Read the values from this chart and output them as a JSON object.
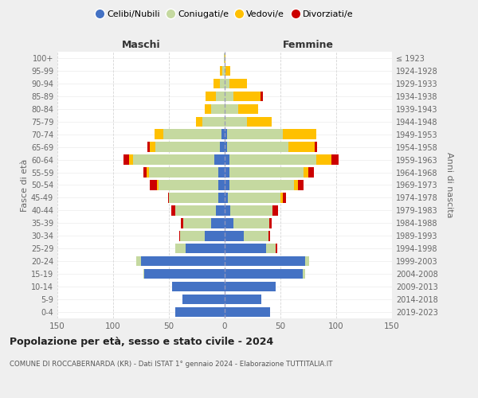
{
  "age_groups": [
    "0-4",
    "5-9",
    "10-14",
    "15-19",
    "20-24",
    "25-29",
    "30-34",
    "35-39",
    "40-44",
    "45-49",
    "50-54",
    "55-59",
    "60-64",
    "65-69",
    "70-74",
    "75-79",
    "80-84",
    "85-89",
    "90-94",
    "95-99",
    "100+"
  ],
  "birth_years": [
    "2019-2023",
    "2014-2018",
    "2009-2013",
    "2004-2008",
    "1999-2003",
    "1994-1998",
    "1989-1993",
    "1984-1988",
    "1979-1983",
    "1974-1978",
    "1969-1973",
    "1964-1968",
    "1959-1963",
    "1954-1958",
    "1949-1953",
    "1944-1948",
    "1939-1943",
    "1934-1938",
    "1929-1933",
    "1924-1928",
    "≤ 1923"
  ],
  "males": {
    "celibe": [
      44,
      38,
      47,
      72,
      75,
      35,
      18,
      12,
      8,
      6,
      6,
      6,
      9,
      4,
      3,
      0,
      0,
      0,
      0,
      0,
      0
    ],
    "coniugato": [
      0,
      0,
      0,
      1,
      4,
      9,
      22,
      25,
      36,
      44,
      53,
      62,
      73,
      58,
      52,
      20,
      12,
      8,
      4,
      2,
      1
    ],
    "vedovo": [
      0,
      0,
      0,
      0,
      0,
      0,
      0,
      0,
      0,
      0,
      2,
      2,
      4,
      5,
      8,
      6,
      6,
      9,
      6,
      2,
      0
    ],
    "divorziato": [
      0,
      0,
      0,
      0,
      0,
      0,
      1,
      2,
      4,
      1,
      6,
      3,
      5,
      2,
      0,
      0,
      0,
      0,
      0,
      0,
      0
    ]
  },
  "females": {
    "nubile": [
      41,
      33,
      46,
      70,
      72,
      37,
      17,
      8,
      5,
      3,
      4,
      4,
      4,
      2,
      2,
      0,
      0,
      0,
      0,
      0,
      0
    ],
    "coniugata": [
      0,
      0,
      0,
      2,
      4,
      9,
      22,
      32,
      38,
      47,
      58,
      67,
      78,
      55,
      50,
      20,
      12,
      8,
      4,
      1,
      0
    ],
    "vedova": [
      0,
      0,
      0,
      0,
      0,
      0,
      0,
      0,
      0,
      2,
      4,
      4,
      14,
      24,
      30,
      22,
      18,
      24,
      16,
      4,
      1
    ],
    "divorziata": [
      0,
      0,
      0,
      0,
      0,
      1,
      2,
      2,
      5,
      3,
      5,
      5,
      6,
      2,
      0,
      0,
      0,
      2,
      0,
      0,
      0
    ]
  },
  "colors": {
    "celibe": "#4472c4",
    "coniugato": "#c5d9a0",
    "vedovo": "#ffc000",
    "divorziato": "#cc0000"
  },
  "title1": "Popolazione per età, sesso e stato civile - 2024",
  "title2": "COMUNE DI ROCCABERNARDA (KR) - Dati ISTAT 1° gennaio 2024 - Elaborazione TUTTITALIA.IT",
  "xlim": 150,
  "xlabel_maschi": "Maschi",
  "xlabel_femmine": "Femmine",
  "ylabel": "Fasce di età",
  "ylabel_right": "Anni di nascita",
  "background_color": "#efefef",
  "plot_background": "#ffffff",
  "legend_labels": [
    "Celibi/Nubili",
    "Coniugati/e",
    "Vedovi/e",
    "Divorziati/e"
  ]
}
